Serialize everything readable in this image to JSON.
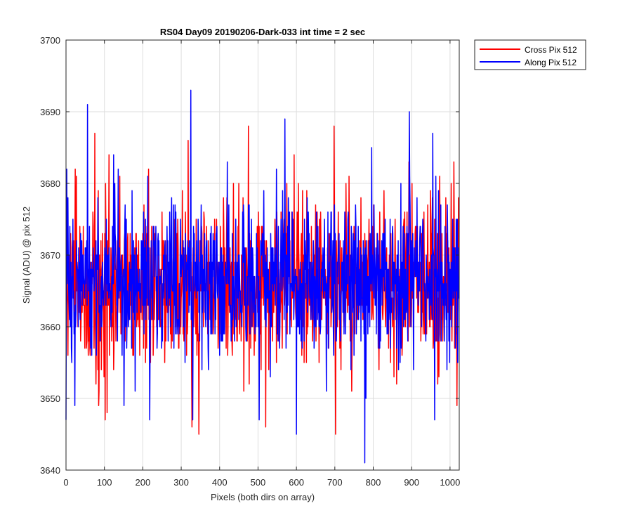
{
  "chart_data": {
    "type": "line",
    "title": "RS04 Day09 20190206-Dark-033 int time = 2 sec",
    "xlabel": "Pixels (both dirs on array)",
    "ylabel": "Signal (ADU) @ pix 512",
    "xlim": [
      0,
      1024
    ],
    "ylim": [
      3640,
      3700
    ],
    "xticks": [
      0,
      100,
      200,
      300,
      400,
      500,
      600,
      700,
      800,
      900,
      1000
    ],
    "yticks": [
      3640,
      3650,
      3660,
      3670,
      3680,
      3690,
      3700
    ],
    "grid": true,
    "legend_position": "outside-top-right",
    "series": [
      {
        "name": "Cross Pix 512",
        "color": "#ff0000",
        "x_range": [
          0,
          1023
        ],
        "points": 1024,
        "mean": 3666,
        "std": 5.5,
        "min": 3645,
        "max": 3688,
        "highlights": [
          [
            2,
            3675
          ],
          [
            5,
            3656
          ],
          [
            24,
            3682
          ],
          [
            27,
            3681
          ],
          [
            75,
            3687
          ],
          [
            86,
            3651
          ],
          [
            102,
            3647
          ],
          [
            107,
            3648
          ],
          [
            112,
            3684
          ],
          [
            140,
            3681
          ],
          [
            215,
            3682
          ],
          [
            318,
            3686
          ],
          [
            328,
            3646
          ],
          [
            346,
            3645
          ],
          [
            475,
            3688
          ],
          [
            520,
            3646
          ],
          [
            594,
            3684
          ],
          [
            698,
            3688
          ],
          [
            702,
            3645
          ],
          [
            729,
            3680
          ],
          [
            893,
            3683
          ],
          [
            1010,
            3683
          ],
          [
            1018,
            3649
          ]
        ]
      },
      {
        "name": "Along Pix 512",
        "color": "#0000ff",
        "x_range": [
          0,
          1023
        ],
        "points": 1024,
        "mean": 3666,
        "std": 5.3,
        "min": 3641,
        "max": 3693,
        "highlights": [
          [
            0,
            3647
          ],
          [
            5,
            3678
          ],
          [
            56,
            3691
          ],
          [
            124,
            3684
          ],
          [
            218,
            3647
          ],
          [
            325,
            3693
          ],
          [
            330,
            3647
          ],
          [
            420,
            3683
          ],
          [
            570,
            3689
          ],
          [
            600,
            3645
          ],
          [
            778,
            3641
          ],
          [
            894,
            3690
          ],
          [
            955,
            3687
          ],
          [
            960,
            3647
          ]
        ]
      }
    ]
  }
}
